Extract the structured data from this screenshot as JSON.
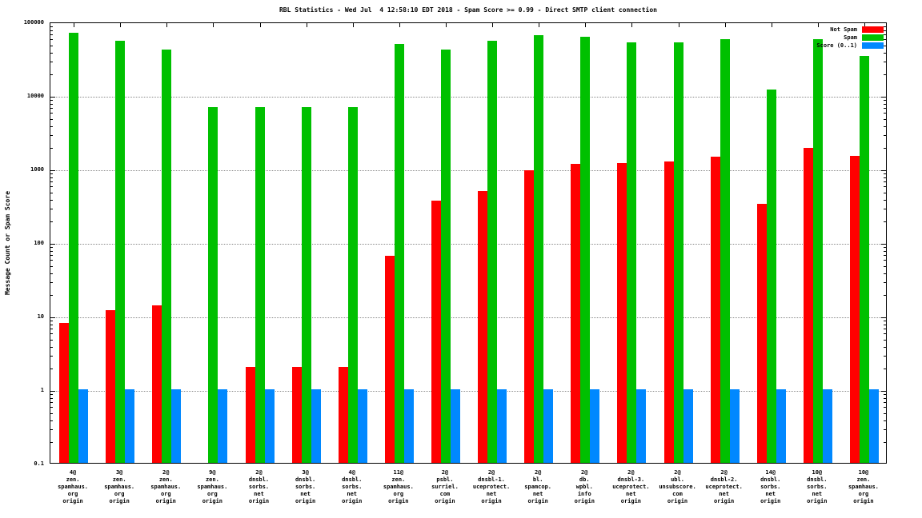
{
  "chart_data": {
    "type": "bar",
    "title": "RBL Statistics - Wed Jul  4 12:58:10 EDT 2018 - Spam Score >= 0.99 - Direct SMTP client connection",
    "ylabel": "Message Count or Spam Score",
    "yscale": "log",
    "ylim": [
      0.1,
      100000
    ],
    "yticks": [
      0.1,
      1,
      10,
      100,
      1000,
      10000,
      100000
    ],
    "ytick_labels": [
      "0.1",
      "1",
      "10",
      "100",
      "1000",
      "10000",
      "100000"
    ],
    "grid": true,
    "legend_position": "top-right-inside",
    "background": "#ffffff",
    "categories": [
      [
        "4@",
        "zen.",
        "spamhaus.",
        "org",
        "origin"
      ],
      [
        "3@",
        "zen.",
        "spamhaus.",
        "org",
        "origin"
      ],
      [
        "2@",
        "zen.",
        "spamhaus.",
        "org",
        "origin"
      ],
      [
        "9@",
        "zen.",
        "spamhaus.",
        "org",
        "origin"
      ],
      [
        "2@",
        "dnsbl.",
        "sorbs.",
        "net",
        "origin"
      ],
      [
        "3@",
        "dnsbl.",
        "sorbs.",
        "net",
        "origin"
      ],
      [
        "4@",
        "dnsbl.",
        "sorbs.",
        "net",
        "origin"
      ],
      [
        "11@",
        "zen.",
        "spamhaus.",
        "org",
        "origin"
      ],
      [
        "2@",
        "psbl.",
        "surriel.",
        "com",
        "origin"
      ],
      [
        "2@",
        "dnsbl-1.",
        "uceprotect.",
        "net",
        "origin"
      ],
      [
        "2@",
        "bl.",
        "spamcop.",
        "net",
        "origin"
      ],
      [
        "2@",
        "db.",
        "wpbl.",
        "info",
        "origin"
      ],
      [
        "2@",
        "dnsbl-3.",
        "uceprotect.",
        "net",
        "origin"
      ],
      [
        "2@",
        "ubl.",
        "unsubscore.",
        "com",
        "origin"
      ],
      [
        "2@",
        "dnsbl-2.",
        "uceprotect.",
        "net",
        "origin"
      ],
      [
        "14@",
        "dnsbl.",
        "sorbs.",
        "net",
        "origin"
      ],
      [
        "10@",
        "dnsbl.",
        "sorbs.",
        "net",
        "origin"
      ],
      [
        "10@",
        "zen.",
        "spamhaus.",
        "org",
        "origin"
      ]
    ],
    "series": [
      {
        "name": "Not Spam",
        "color": "#ff0000",
        "values": [
          8,
          12,
          14,
          0,
          2,
          2,
          2,
          66,
          370,
          500,
          950,
          1150,
          1200,
          1250,
          1450,
          330,
          1900,
          1500
        ]
      },
      {
        "name": "Spam",
        "color": "#00c000",
        "values": [
          70000,
          55000,
          42000,
          6800,
          6800,
          6800,
          6800,
          50000,
          42000,
          55000,
          65000,
          62000,
          52000,
          52000,
          57000,
          12000,
          57000,
          34000
        ]
      },
      {
        "name": "Score (0..1)",
        "color": "#0088ff",
        "values": [
          1,
          1,
          1,
          1,
          1,
          1,
          1,
          1,
          1,
          1,
          1,
          1,
          1,
          1,
          1,
          1,
          1,
          1
        ]
      }
    ]
  }
}
